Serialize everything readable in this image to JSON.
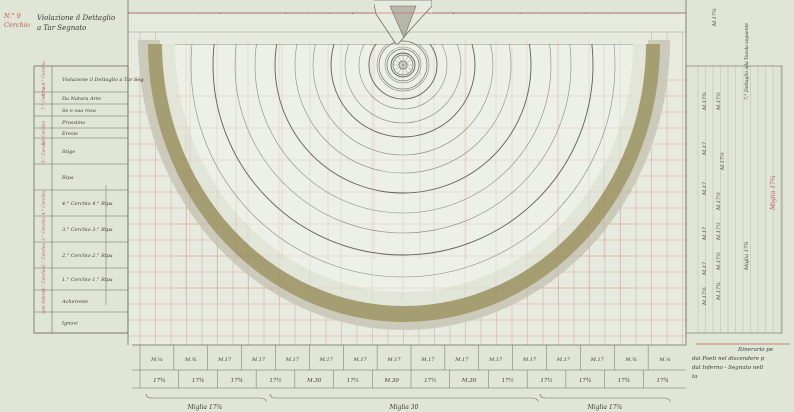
{
  "colors": {
    "paper": "#dfe6d6",
    "sheet": "#eef1e8",
    "ink": "#3a3a34",
    "red_ink": "#c65a58",
    "ring_band": "#a59e72",
    "grey_band": "#cbcabb"
  },
  "header": {
    "label_left": "N.° 9",
    "label_left_sub": "Cerchio",
    "title_line1": "Violazione il Dettaglio",
    "title_line2": "a Tar Segnato",
    "top_right_ref": "M.17¾"
  },
  "left_table": {
    "rows": [
      {
        "group": "9.° e 8.° Cerchio",
        "label": "Violazione il Dettaglio a Tar Seg"
      },
      {
        "group": "7.° Cerchio",
        "label": "Da Natura Arte"
      },
      {
        "group": "",
        "label": "Se e sua rosa"
      },
      {
        "group": "",
        "label": "Prossimo"
      },
      {
        "group": "6.° Cerchio",
        "label": "Eresie"
      },
      {
        "group": "5.° Cerchio",
        "label": "Stige"
      },
      {
        "group": "",
        "label": "Ripa"
      },
      {
        "group": "4.° Cerchio",
        "label": "4.° Cerchio 4.° Ripa"
      },
      {
        "group": "3.° Cerchio",
        "label": "3.° Cerchio 3.° Ripa"
      },
      {
        "group": "2.° Cerchio",
        "label": "2.° Cerchio 2.° Ripa"
      },
      {
        "group": "1.° Cerchio",
        "label": "1.° Cerchio 1.° Ripa"
      },
      {
        "group": "Anti Inferno",
        "label": "Acheronte"
      },
      {
        "group": "",
        "label": "Ignavi"
      }
    ]
  },
  "right_scale": {
    "labels": [
      "M.17¾",
      "M.17½",
      "M.17",
      "M.17½",
      "M.17",
      "M.17½",
      "M.17",
      "M.17½",
      "M.17",
      "M.17½",
      "M.17½",
      "M.17¾"
    ],
    "notes": [
      "7.° Dettaglio alla Tavola seguente",
      "Miglia 17¾",
      "Miglia 17¾"
    ]
  },
  "bottom_scale": {
    "row1": [
      "M.¼",
      "M.¾",
      "M.17",
      "M.17",
      "M.17",
      "M.17",
      "M.17",
      "M.17",
      "M.17",
      "M.17",
      "M.17",
      "M.17",
      "M.17",
      "M.17",
      "M.¾",
      "M.¼"
    ],
    "row2": [
      "17¾",
      "17¾",
      "17¾",
      "17½",
      "M.30",
      "17½",
      "M.30",
      "17½",
      "M.30",
      "17½",
      "17½",
      "17¾",
      "17¾",
      "17¾"
    ],
    "miglia": [
      "Miglia 17¾",
      "Miglia 30",
      "Miglia 17¾"
    ]
  },
  "caption": {
    "line1": "Itinerario pe",
    "line2": "dai Poeti nel discendere p",
    "line3": "dal Inferno - Segnato nell",
    "line4": "ta"
  }
}
